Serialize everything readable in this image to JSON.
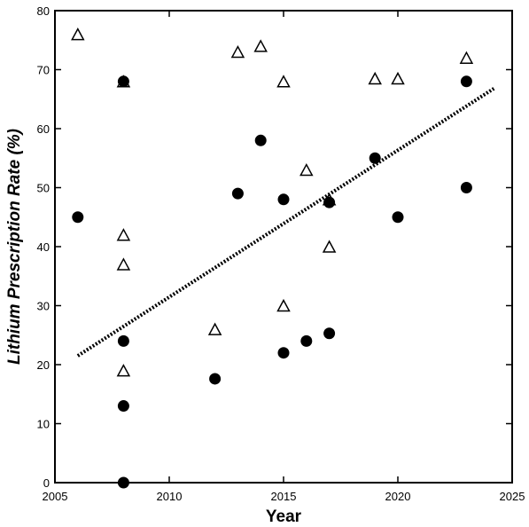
{
  "chart_data": {
    "type": "scatter",
    "title": "",
    "xlabel": "Year",
    "ylabel": "Lithium Prescription Rate  (%)",
    "xlim": [
      2005,
      2025
    ],
    "ylim": [
      0,
      80
    ],
    "x_ticks": [
      2005,
      2010,
      2015,
      2020,
      2025
    ],
    "y_ticks": [
      0,
      10,
      20,
      30,
      40,
      50,
      60,
      70,
      80
    ],
    "grid": false,
    "legend": "none",
    "series": [
      {
        "marker": "circle-filled",
        "color": "#000000",
        "points": [
          {
            "x": 2006,
            "y": 45
          },
          {
            "x": 2008,
            "y": 68
          },
          {
            "x": 2008,
            "y": 24
          },
          {
            "x": 2008,
            "y": 13
          },
          {
            "x": 2008,
            "y": 0
          },
          {
            "x": 2012,
            "y": 17.6
          },
          {
            "x": 2013,
            "y": 49
          },
          {
            "x": 2014,
            "y": 58
          },
          {
            "x": 2015,
            "y": 48
          },
          {
            "x": 2015,
            "y": 22
          },
          {
            "x": 2016,
            "y": 24
          },
          {
            "x": 2017,
            "y": 47.5
          },
          {
            "x": 2017,
            "y": 25.3
          },
          {
            "x": 2019,
            "y": 55
          },
          {
            "x": 2020,
            "y": 45
          },
          {
            "x": 2023,
            "y": 68
          },
          {
            "x": 2023,
            "y": 50
          }
        ]
      },
      {
        "marker": "triangle-open",
        "color": "#000000",
        "points": [
          {
            "x": 2006,
            "y": 76
          },
          {
            "x": 2008,
            "y": 68
          },
          {
            "x": 2008,
            "y": 42
          },
          {
            "x": 2008,
            "y": 37
          },
          {
            "x": 2008,
            "y": 19
          },
          {
            "x": 2012,
            "y": 26
          },
          {
            "x": 2013,
            "y": 73
          },
          {
            "x": 2014,
            "y": 74
          },
          {
            "x": 2015,
            "y": 68
          },
          {
            "x": 2015,
            "y": 30
          },
          {
            "x": 2016,
            "y": 53
          },
          {
            "x": 2017,
            "y": 48
          },
          {
            "x": 2017,
            "y": 40
          },
          {
            "x": 2019,
            "y": 68.5
          },
          {
            "x": 2020,
            "y": 68.5
          },
          {
            "x": 2023,
            "y": 72
          }
        ]
      }
    ],
    "trend_line": {
      "style": "dotted",
      "color": "#000000",
      "from": {
        "x": 2006,
        "y": 21.5
      },
      "to": {
        "x": 2024.2,
        "y": 66.8
      }
    }
  }
}
